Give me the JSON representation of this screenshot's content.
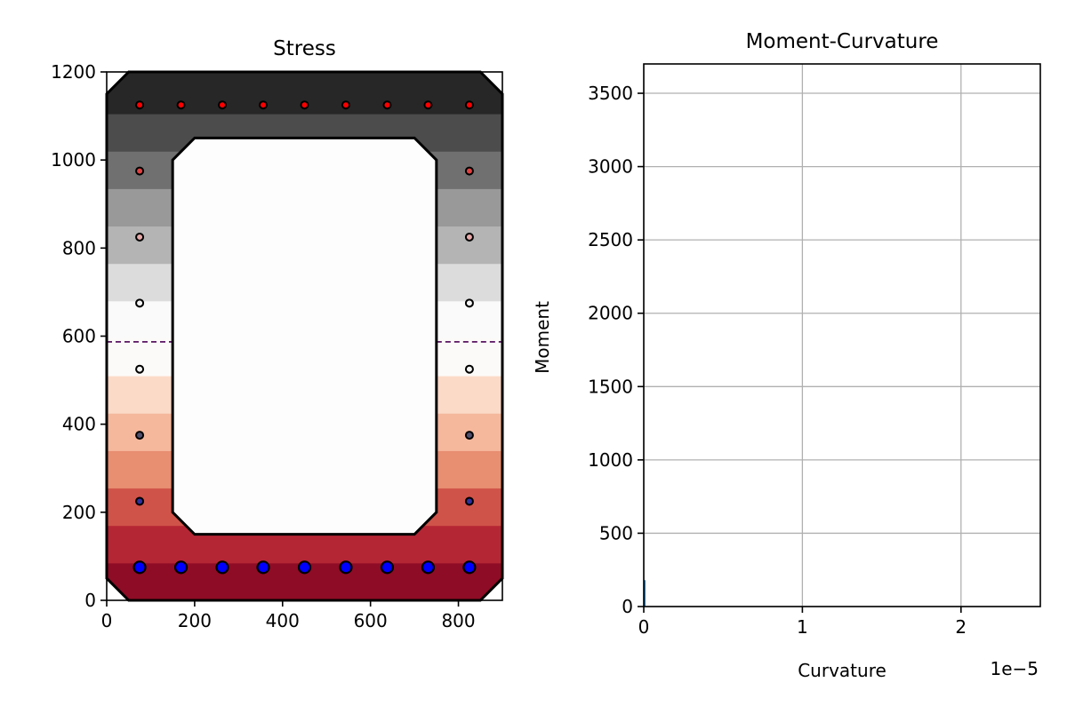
{
  "chart_data": [
    {
      "type": "heatmap",
      "title": "Stress",
      "xlabel": "",
      "ylabel": "",
      "xlim": [
        0,
        900
      ],
      "ylim": [
        0,
        1200
      ],
      "x_ticks": [
        0,
        200,
        400,
        600,
        800
      ],
      "y_ticks": [
        0,
        200,
        400,
        600,
        800,
        1000,
        1200
      ],
      "section_outline": [
        [
          50,
          0
        ],
        [
          850,
          0
        ],
        [
          900,
          50
        ],
        [
          900,
          1150
        ],
        [
          850,
          1200
        ],
        [
          50,
          1200
        ],
        [
          0,
          1150
        ],
        [
          0,
          50
        ]
      ],
      "void_outline": [
        [
          200,
          150
        ],
        [
          700,
          150
        ],
        [
          750,
          200
        ],
        [
          750,
          1000
        ],
        [
          700,
          1050
        ],
        [
          200,
          1050
        ],
        [
          150,
          1000
        ],
        [
          150,
          200
        ]
      ],
      "neutral_axis_y": 587,
      "stress_bands": [
        {
          "y0": 0,
          "y1": 85,
          "color": "#8e0c25"
        },
        {
          "y0": 85,
          "y1": 170,
          "color": "#b52634"
        },
        {
          "y0": 170,
          "y1": 255,
          "color": "#d05349"
        },
        {
          "y0": 255,
          "y1": 340,
          "color": "#e88e71"
        },
        {
          "y0": 340,
          "y1": 425,
          "color": "#f5b89d"
        },
        {
          "y0": 425,
          "y1": 510,
          "color": "#fcdac8"
        },
        {
          "y0": 510,
          "y1": 595,
          "color": "#fcfaf8"
        },
        {
          "y0": 595,
          "y1": 680,
          "color": "#fafafa"
        },
        {
          "y0": 680,
          "y1": 765,
          "color": "#dcdcdc"
        },
        {
          "y0": 765,
          "y1": 850,
          "color": "#b4b4b4"
        },
        {
          "y0": 850,
          "y1": 935,
          "color": "#999999"
        },
        {
          "y0": 935,
          "y1": 1020,
          "color": "#707070"
        },
        {
          "y0": 1020,
          "y1": 1105,
          "color": "#4c4c4c"
        },
        {
          "y0": 1105,
          "y1": 1200,
          "color": "#272727"
        }
      ],
      "bars": [
        {
          "x": 75,
          "y": 75,
          "size": "large",
          "fill": "#0000ff"
        },
        {
          "x": 169,
          "y": 75,
          "size": "large",
          "fill": "#0000ff"
        },
        {
          "x": 263,
          "y": 75,
          "size": "large",
          "fill": "#0000ff"
        },
        {
          "x": 356,
          "y": 75,
          "size": "large",
          "fill": "#0000ff"
        },
        {
          "x": 450,
          "y": 75,
          "size": "large",
          "fill": "#0000ff"
        },
        {
          "x": 544,
          "y": 75,
          "size": "large",
          "fill": "#0000ff"
        },
        {
          "x": 638,
          "y": 75,
          "size": "large",
          "fill": "#0000ff"
        },
        {
          "x": 731,
          "y": 75,
          "size": "large",
          "fill": "#0000ff"
        },
        {
          "x": 825,
          "y": 75,
          "size": "large",
          "fill": "#0000ff"
        },
        {
          "x": 75,
          "y": 225,
          "size": "small",
          "fill": "#3030a0"
        },
        {
          "x": 825,
          "y": 225,
          "size": "small",
          "fill": "#3030a0"
        },
        {
          "x": 75,
          "y": 375,
          "size": "small",
          "fill": "#505070"
        },
        {
          "x": 825,
          "y": 375,
          "size": "small",
          "fill": "#505070"
        },
        {
          "x": 75,
          "y": 525,
          "size": "small",
          "fill": "#f5f5f5"
        },
        {
          "x": 825,
          "y": 525,
          "size": "small",
          "fill": "#f5f5f5"
        },
        {
          "x": 75,
          "y": 675,
          "size": "small",
          "fill": "#f5f5f5"
        },
        {
          "x": 825,
          "y": 675,
          "size": "small",
          "fill": "#f5f5f5"
        },
        {
          "x": 75,
          "y": 825,
          "size": "small",
          "fill": "#e8a8a8"
        },
        {
          "x": 825,
          "y": 825,
          "size": "small",
          "fill": "#e8a8a8"
        },
        {
          "x": 75,
          "y": 975,
          "size": "small",
          "fill": "#e04040"
        },
        {
          "x": 825,
          "y": 975,
          "size": "small",
          "fill": "#e04040"
        },
        {
          "x": 75,
          "y": 1125,
          "size": "small",
          "fill": "#ff0000"
        },
        {
          "x": 169,
          "y": 1125,
          "size": "small",
          "fill": "#ff0000"
        },
        {
          "x": 263,
          "y": 1125,
          "size": "small",
          "fill": "#ff0000"
        },
        {
          "x": 356,
          "y": 1125,
          "size": "small",
          "fill": "#ff0000"
        },
        {
          "x": 450,
          "y": 1125,
          "size": "small",
          "fill": "#ff0000"
        },
        {
          "x": 544,
          "y": 1125,
          "size": "small",
          "fill": "#ff0000"
        },
        {
          "x": 638,
          "y": 1125,
          "size": "small",
          "fill": "#ff0000"
        },
        {
          "x": 731,
          "y": 1125,
          "size": "small",
          "fill": "#ff0000"
        },
        {
          "x": 825,
          "y": 1125,
          "size": "small",
          "fill": "#ff0000"
        }
      ],
      "colors": {
        "neutral_axis": "#4b0055",
        "outline": "#000000",
        "void": "#fdfdfd"
      }
    },
    {
      "type": "line",
      "title": "Moment-Curvature",
      "xlabel": "Curvature",
      "ylabel": "Moment",
      "xlim": [
        0,
        2.5e-05
      ],
      "ylim": [
        0,
        3700
      ],
      "x_ticks": [
        0,
        1e-05,
        2e-05
      ],
      "x_tick_labels": [
        "0",
        "1",
        "2"
      ],
      "x_offset_text": "1e−5",
      "y_ticks": [
        0,
        500,
        1000,
        1500,
        2000,
        2500,
        3000,
        3500
      ],
      "grid": true,
      "series": [
        {
          "color": "#1f77b4",
          "x": [
            0,
            0
          ],
          "y": [
            0,
            180
          ]
        }
      ]
    }
  ]
}
